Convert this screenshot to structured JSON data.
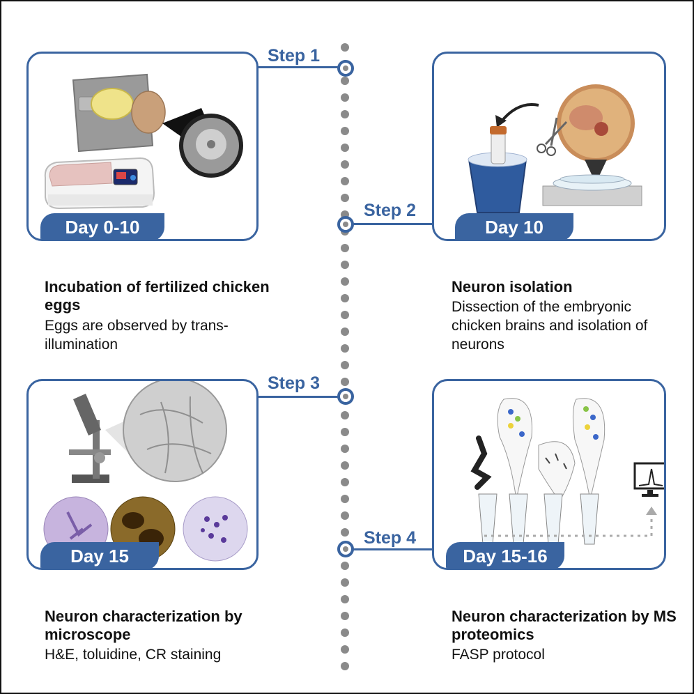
{
  "steps": [
    {
      "label": "Step 1",
      "day": "Day 0-10",
      "title": "Incubation of fertilized chicken eggs",
      "description": "Eggs are observed by trans-illumination"
    },
    {
      "label": "Step 2",
      "day": "Day 10",
      "title": "Neuron isolation",
      "description": "Dissection of the embryonic chicken brains and isolation of neurons"
    },
    {
      "label": "Step 3",
      "day": "Day 15",
      "title": "Neuron characterization by microscope",
      "description": "H&E, toluidine, CR staining"
    },
    {
      "label": "Step 4",
      "day": "Day 15-16",
      "title": "Neuron characterization by MS proteomics",
      "description": "FASP protocol"
    }
  ],
  "colors": {
    "accent": "#3a64a0",
    "timeline_dots": "#8a8a8a"
  }
}
